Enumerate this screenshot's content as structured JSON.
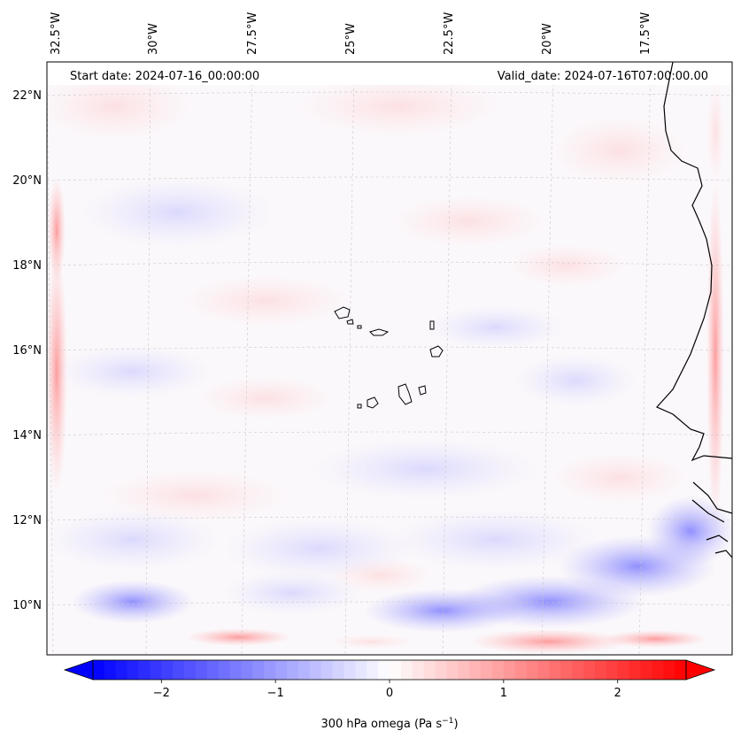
{
  "map": {
    "start_date": "Start date: 2024-07-16_00:00:00",
    "valid_date": "Valid_date: 2024-07-16T07:00:00.00",
    "lon_labels": [
      "32.5°W",
      "30°W",
      "27.5°W",
      "25°W",
      "22.5°W",
      "20°W",
      "17.5°W"
    ],
    "lat_labels": [
      "22°N",
      "20°N",
      "18°N",
      "16°N",
      "14°N",
      "12°N",
      "10°N"
    ],
    "colors": {
      "negative": "#0000ff",
      "neutral": "#ffffff",
      "positive": "#ff0000",
      "coastline": "#000000",
      "gridline": "#c8c8c8"
    }
  },
  "colorbar": {
    "ticks": [
      "−2",
      "−1",
      "0",
      "1",
      "2"
    ],
    "tick_values": [
      -2,
      -1,
      0,
      1,
      2
    ],
    "range": [
      -2.6,
      2.6
    ],
    "label_main": "300 hPa omega (Pa s",
    "label_sup": "−1",
    "label_end": ")"
  }
}
